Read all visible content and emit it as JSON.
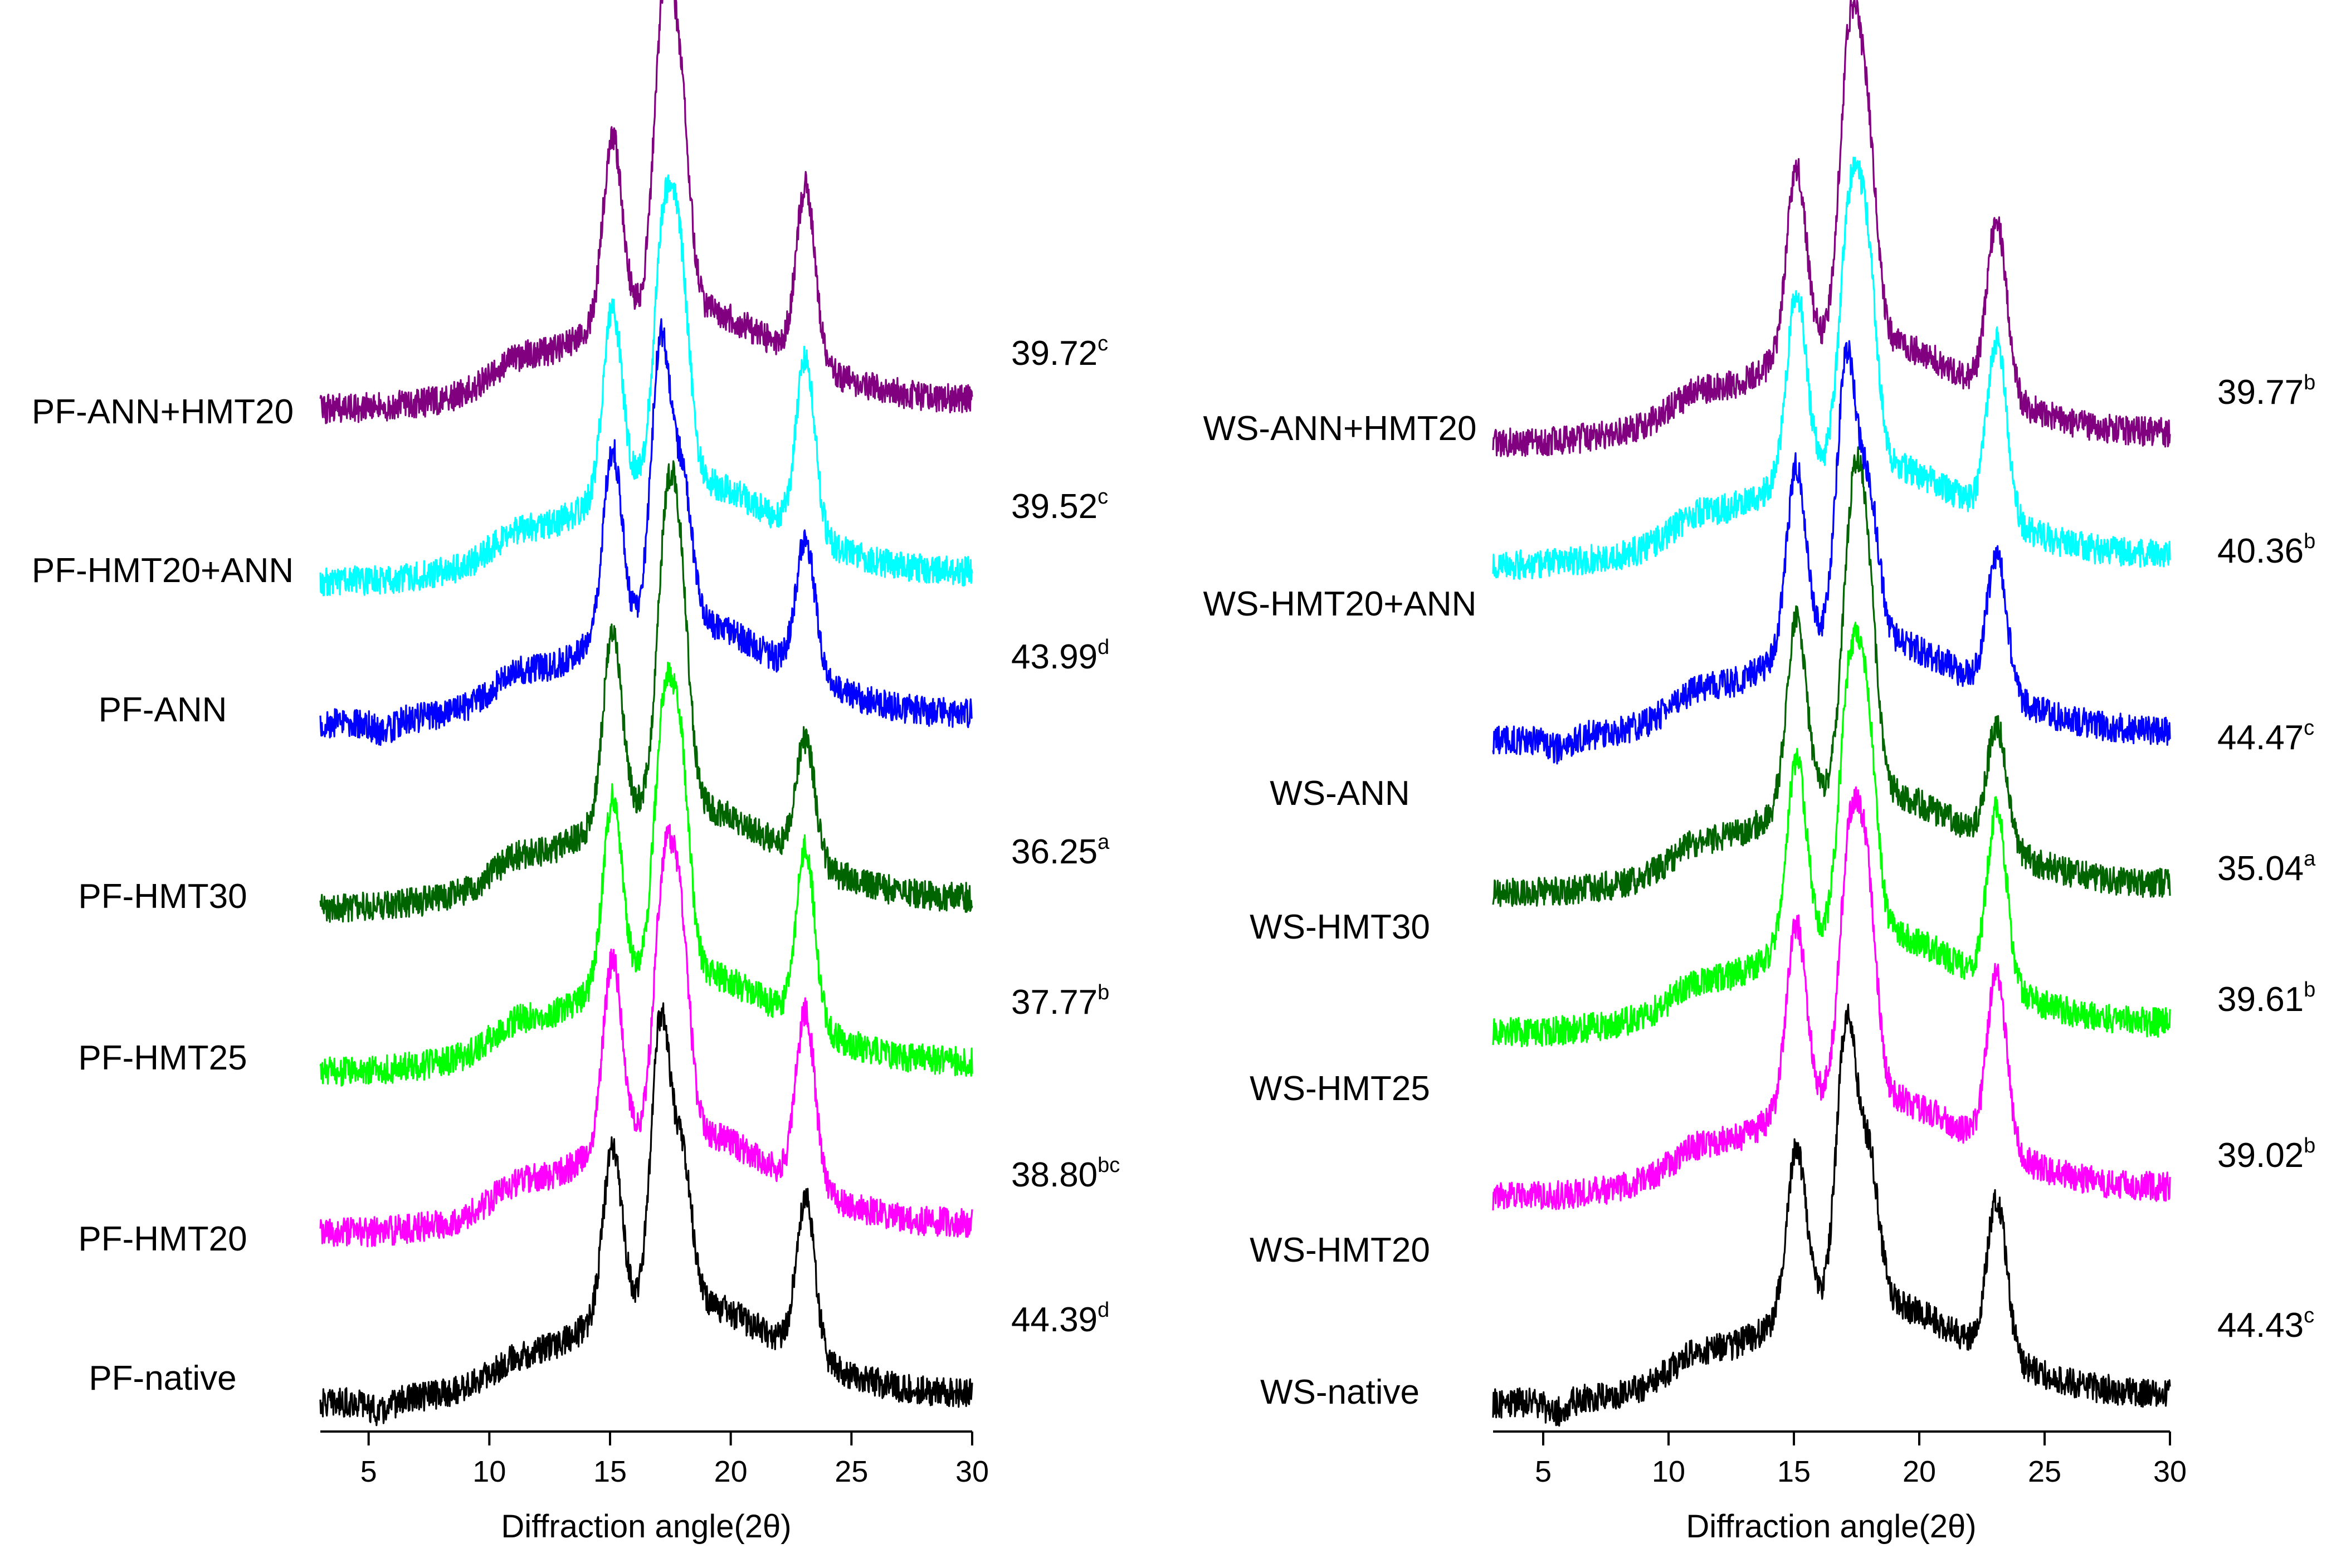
{
  "chart_data": [
    {
      "type": "line",
      "panel": "left",
      "title": "",
      "xlabel": "Diffraction angle(2θ)",
      "ylabel": "",
      "xlim": [
        3,
        30
      ],
      "xticks": [
        5,
        10,
        15,
        20,
        25,
        30
      ],
      "series": [
        {
          "name": "PF-native",
          "value": "44.39",
          "sup": "d",
          "color": "#000000",
          "peaks": [
            [
              5.5,
              0.35
            ],
            [
              11,
              0.55
            ],
            [
              15.1,
              1.35
            ],
            [
              17.1,
              1.95
            ],
            [
              18,
              1.2
            ],
            [
              23.1,
              1.3
            ]
          ],
          "baseline_start": 0.0,
          "baseline_end": 0.05
        },
        {
          "name": "PF-HMT20",
          "value": "38.80",
          "sup": "bc",
          "color": "#ff00ff",
          "peaks": [
            [
              11,
              0.6
            ],
            [
              15.1,
              1.45
            ],
            [
              17.2,
              1.7
            ],
            [
              17.9,
              1.55
            ],
            [
              23.1,
              1.4
            ]
          ],
          "baseline_start": 0.0,
          "baseline_end": 0.05
        },
        {
          "name": "PF-HMT25",
          "value": "37.77",
          "sup": "b",
          "color": "#00ff00",
          "peaks": [
            [
              11,
              0.6
            ],
            [
              15.1,
              1.45
            ],
            [
              17.2,
              1.7
            ],
            [
              17.9,
              1.55
            ],
            [
              23.1,
              1.4
            ]
          ],
          "baseline_start": 0.0,
          "baseline_end": 0.05
        },
        {
          "name": "PF-HMT30",
          "value": "36.25",
          "sup": "a",
          "color": "#006400",
          "peaks": [
            [
              11,
              0.6
            ],
            [
              15.1,
              1.45
            ],
            [
              17.3,
              1.75
            ],
            [
              17.9,
              1.55
            ],
            [
              23.1,
              1.1
            ]
          ],
          "baseline_start": 0.0,
          "baseline_end": 0.05
        },
        {
          "name": "PF-ANN",
          "value": "43.99",
          "sup": "d",
          "color": "#0000ff",
          "peaks": [
            [
              5.6,
              0.35
            ],
            [
              11,
              0.6
            ],
            [
              15.1,
              1.45
            ],
            [
              17.1,
              1.95
            ],
            [
              18,
              1.2
            ],
            [
              23.1,
              1.2
            ]
          ],
          "baseline_start": 0.0,
          "baseline_end": 0.05
        },
        {
          "name": "PF-HMT20+ANN",
          "value": "39.52",
          "sup": "c",
          "color": "#00ffff",
          "peaks": [
            [
              11,
              0.6
            ],
            [
              15.1,
              1.45
            ],
            [
              17.2,
              1.7
            ],
            [
              17.9,
              1.55
            ],
            [
              23.1,
              1.4
            ]
          ],
          "baseline_start": 0.0,
          "baseline_end": 0.05
        },
        {
          "name": "PF-ANN+HMT20",
          "value": "39.72",
          "sup": "c",
          "color": "#800080",
          "peaks": [
            [
              11,
              0.6
            ],
            [
              15.1,
              1.45
            ],
            [
              17.2,
              1.95
            ],
            [
              17.9,
              1.55
            ],
            [
              23.1,
              1.4
            ]
          ],
          "baseline_start": 0.0,
          "baseline_end": 0.05
        }
      ]
    },
    {
      "type": "line",
      "panel": "right",
      "title": "",
      "xlabel": "Diffraction angle(2θ)",
      "ylabel": "",
      "xlim": [
        3,
        30
      ],
      "xticks": [
        5,
        10,
        15,
        20,
        25,
        30
      ],
      "series": [
        {
          "name": "WS-native",
          "value": "44.43",
          "sup": "c",
          "color": "#000000",
          "peaks": [
            [
              5.5,
              0.35
            ],
            [
              11,
              0.6
            ],
            [
              15.1,
              1.35
            ],
            [
              17.1,
              1.95
            ],
            [
              18,
              1.2
            ],
            [
              23.1,
              1.3
            ]
          ],
          "baseline_start": 0.0,
          "baseline_end": 0.05
        },
        {
          "name": "WS-HMT20",
          "value": "39.02",
          "sup": "b",
          "color": "#ff00ff",
          "peaks": [
            [
              11,
              0.6
            ],
            [
              15.1,
              1.45
            ],
            [
              17.2,
              1.7
            ],
            [
              17.9,
              1.55
            ],
            [
              23.1,
              1.4
            ]
          ],
          "baseline_start": 0.0,
          "baseline_end": 0.05
        },
        {
          "name": "WS-HMT25",
          "value": "39.61",
          "sup": "b",
          "color": "#00ff00",
          "peaks": [
            [
              11,
              0.6
            ],
            [
              15.1,
              1.45
            ],
            [
              17.2,
              1.7
            ],
            [
              17.9,
              1.55
            ],
            [
              23.1,
              1.4
            ]
          ],
          "baseline_start": 0.0,
          "baseline_end": 0.05
        },
        {
          "name": "WS-HMT30",
          "value": "35.04",
          "sup": "a",
          "color": "#006400",
          "peaks": [
            [
              11,
              0.6
            ],
            [
              15.1,
              1.45
            ],
            [
              17.3,
              1.75
            ],
            [
              17.9,
              1.55
            ],
            [
              23.1,
              1.1
            ]
          ],
          "baseline_start": 0.0,
          "baseline_end": 0.05
        },
        {
          "name": "WS-ANN",
          "value": "44.47",
          "sup": "c",
          "color": "#0000ff",
          "peaks": [
            [
              5.6,
              0.35
            ],
            [
              11,
              0.6
            ],
            [
              15.1,
              1.45
            ],
            [
              17.1,
              1.95
            ],
            [
              18,
              1.2
            ],
            [
              23.1,
              1.2
            ]
          ],
          "baseline_start": 0.0,
          "baseline_end": 0.05
        },
        {
          "name": "WS-HMT20+ANN",
          "value": "40.36",
          "sup": "b",
          "color": "#00ffff",
          "peaks": [
            [
              11,
              0.6
            ],
            [
              15.1,
              1.45
            ],
            [
              17.2,
              1.7
            ],
            [
              17.9,
              1.55
            ],
            [
              23.1,
              1.4
            ]
          ],
          "baseline_start": 0.0,
          "baseline_end": 0.05
        },
        {
          "name": "WS-ANN+HMT20",
          "value": "39.77",
          "sup": "b",
          "color": "#800080",
          "peaks": [
            [
              11,
              0.6
            ],
            [
              15.1,
              1.45
            ],
            [
              17.2,
              1.95
            ],
            [
              17.9,
              1.55
            ],
            [
              23.1,
              1.4
            ]
          ],
          "baseline_start": 0.0,
          "baseline_end": 0.05
        }
      ]
    }
  ]
}
